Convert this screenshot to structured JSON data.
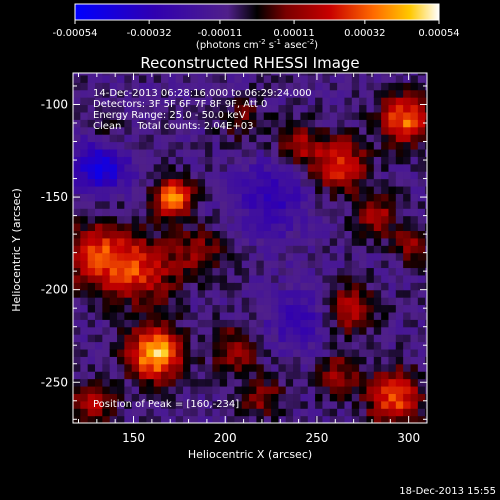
{
  "chart_data": {
    "type": "heatmap",
    "title": "Reconstructed RHESSI Image",
    "xlabel": "Heliocentric X (arcsec)",
    "ylabel": "Heliocentric Y (arcsec)",
    "xlim": [
      117,
      310
    ],
    "ylim": [
      -272,
      -83
    ],
    "x_ticks": [
      150,
      200,
      250,
      300
    ],
    "y_ticks": [
      -100,
      -150,
      -200,
      -250
    ],
    "colorbar": {
      "min": -0.00054,
      "max": 0.00054,
      "ticks": [
        "-0.00054",
        "-0.00032",
        "-0.00011",
        "0.00011",
        "0.00032",
        "0.00054"
      ],
      "units_text": "(photons cm",
      "units_exp1": "-2",
      "units_mid": " s",
      "units_exp2": "-1",
      "units_mid2": " asec",
      "units_exp3": "-2",
      "units_end": ")"
    },
    "annotations": [
      "14-Dec-2013 06:28:16.000 to 06:29:24.000",
      "Detectors: 3F 5F 6F 7F 8F 9F, Att 0",
      "Energy Range: 25.0 - 50.0 keV",
      "Clean     Total counts: 2.04E+03"
    ],
    "peak_label": "Position of Peak = [160,-234]",
    "peak": [
      160,
      -234
    ],
    "sources": [
      {
        "x": 162,
        "y": -234,
        "amp": 0.00056,
        "sigma": 10
      },
      {
        "x": 172,
        "y": -150,
        "amp": 0.00052,
        "sigma": 7
      },
      {
        "x": 132,
        "y": -182,
        "amp": 0.00036,
        "sigma": 13
      },
      {
        "x": 155,
        "y": -190,
        "amp": 0.0003,
        "sigma": 12
      },
      {
        "x": 185,
        "y": -180,
        "amp": 0.0002,
        "sigma": 10
      },
      {
        "x": 298,
        "y": -108,
        "amp": 0.00044,
        "sigma": 9
      },
      {
        "x": 262,
        "y": -132,
        "amp": 0.00036,
        "sigma": 10
      },
      {
        "x": 240,
        "y": -122,
        "amp": 0.00024,
        "sigma": 8
      },
      {
        "x": 282,
        "y": -160,
        "amp": 0.00026,
        "sigma": 8
      },
      {
        "x": 302,
        "y": -175,
        "amp": 0.0002,
        "sigma": 7
      },
      {
        "x": 268,
        "y": -210,
        "amp": 0.00028,
        "sigma": 9
      },
      {
        "x": 292,
        "y": -258,
        "amp": 0.0004,
        "sigma": 10
      },
      {
        "x": 262,
        "y": -246,
        "amp": 0.00022,
        "sigma": 8
      },
      {
        "x": 205,
        "y": -232,
        "amp": 0.00022,
        "sigma": 9
      },
      {
        "x": 220,
        "y": -258,
        "amp": 0.0002,
        "sigma": 8
      },
      {
        "x": 128,
        "y": -262,
        "amp": 0.00026,
        "sigma": 8
      },
      {
        "x": 135,
        "y": -118,
        "amp": 0.00016,
        "sigma": 8
      },
      {
        "x": 210,
        "y": -108,
        "amp": 0.00014,
        "sigma": 9
      },
      {
        "x": 132,
        "y": -132,
        "amp": -0.00042,
        "sigma": 10
      },
      {
        "x": 225,
        "y": -150,
        "amp": -0.0002,
        "sigma": 14
      },
      {
        "x": 240,
        "y": -215,
        "amp": -0.00018,
        "sigma": 12
      }
    ]
  },
  "footer": {
    "date": "18-Dec-2013 15:55"
  }
}
